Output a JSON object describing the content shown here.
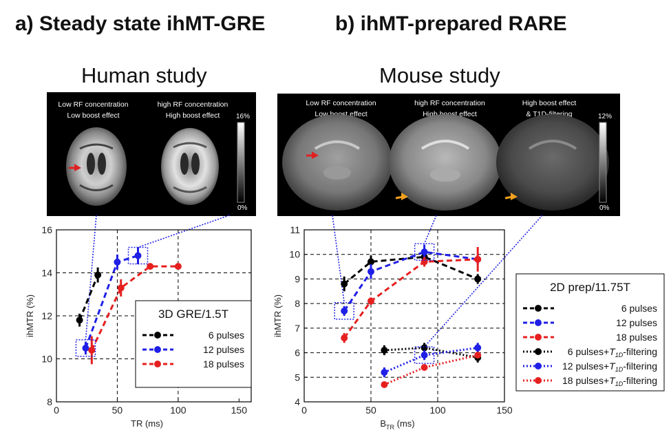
{
  "headers": {
    "a_title": "a) Steady state ihMT-GRE",
    "b_title": "b) ihMT-prepared RARE",
    "human_study": "Human study",
    "mouse_study": "Mouse study"
  },
  "human_panel": {
    "captions": [
      [
        "Low RF concentration",
        "Low boost effect"
      ],
      [
        "high RF concentration",
        "High boost effect"
      ]
    ],
    "colorbar_max": "16%",
    "colorbar_min": "0%"
  },
  "mouse_panel": {
    "captions": [
      [
        "Low RF concentration",
        "Low boost effect"
      ],
      [
        "high RF concentration",
        "High boost effect"
      ],
      [
        "High boost effect",
        "& T1D-filtering"
      ]
    ],
    "colorbar_max": "12%",
    "colorbar_min": "0%"
  },
  "colors": {
    "black": "#000000",
    "blue": "#1f1fe6",
    "red": "#e61f1f"
  },
  "chart_data": [
    {
      "type": "line",
      "id": "human",
      "xlabel": "TR (ms)",
      "ylabel": "ihMTR (%)",
      "xlim": [
        0,
        160
      ],
      "ylim": [
        8,
        16
      ],
      "xticks": [
        0,
        50,
        100,
        150
      ],
      "yticks": [
        8,
        10,
        12,
        14,
        16
      ],
      "grid_x": [
        50,
        100
      ],
      "grid_y": [
        10,
        12,
        14
      ],
      "legend_title": "3D GRE/1.5T",
      "series": [
        {
          "name": "6 pulses",
          "color": "#000000",
          "dash": "dashed",
          "points": [
            [
              19,
              11.8,
              0.3
            ],
            [
              34,
              13.9,
              0.35
            ]
          ]
        },
        {
          "name": "12 pulses",
          "color": "#1f1fe6",
          "dash": "dashed",
          "points": [
            [
              24,
              10.5,
              0.3
            ],
            [
              50,
              14.5,
              0.35
            ],
            [
              67,
              14.8,
              0.4
            ]
          ]
        },
        {
          "name": "18 pulses",
          "color": "#e61f1f",
          "dash": "dashed",
          "points": [
            [
              29,
              10.4,
              0.65
            ],
            [
              53,
              13.3,
              0.4
            ],
            [
              77,
              14.3,
              0.1
            ],
            [
              100,
              14.3,
              0.1
            ]
          ]
        }
      ]
    },
    {
      "type": "line",
      "id": "mouse",
      "xlabel": "B",
      "xlabel_sub": "TR",
      "xlabel_unit": " (ms)",
      "ylabel": "ihMTR (%)",
      "xlim": [
        0,
        150
      ],
      "ylim": [
        4,
        11
      ],
      "xticks": [
        0,
        50,
        100,
        150
      ],
      "yticks": [
        4,
        5,
        6,
        7,
        8,
        9,
        10,
        11
      ],
      "grid_x": [
        50,
        100
      ],
      "grid_y": [
        5,
        6,
        7,
        8,
        9,
        10
      ],
      "legend_title": "2D prep/11.75T",
      "series": [
        {
          "name": "6 pulses",
          "color": "#000000",
          "dash": "dashed",
          "points": [
            [
              30,
              8.8,
              0.3
            ],
            [
              50,
              9.7,
              0.25
            ],
            [
              90,
              9.9,
              0.25
            ],
            [
              130,
              9.0,
              0.2
            ]
          ]
        },
        {
          "name": "12 pulses",
          "color": "#1f1fe6",
          "dash": "dashed",
          "points": [
            [
              30,
              7.7,
              0.2
            ],
            [
              50,
              9.3,
              0.3
            ],
            [
              90,
              10.1,
              0.3
            ],
            [
              130,
              9.8,
              0.2
            ]
          ]
        },
        {
          "name": "18 pulses",
          "color": "#e61f1f",
          "dash": "dashed",
          "points": [
            [
              30,
              6.6,
              0.2
            ],
            [
              50,
              8.1,
              0.15
            ],
            [
              90,
              9.7,
              0.2
            ],
            [
              130,
              9.8,
              0.5
            ]
          ]
        },
        {
          "name": "6 pulses+",
          "suffix": "-filtering",
          "t": "T",
          "sub": "1D",
          "color": "#000000",
          "dash": "dotted",
          "points": [
            [
              60,
              6.1,
              0.2
            ],
            [
              90,
              6.2,
              0.2
            ],
            [
              130,
              5.8,
              0.2
            ]
          ]
        },
        {
          "name": "12 pulses+",
          "suffix": "-filtering",
          "t": "T",
          "sub": "1D",
          "color": "#1f1fe6",
          "dash": "dotted",
          "points": [
            [
              60,
              5.2,
              0.2
            ],
            [
              90,
              5.9,
              0.2
            ],
            [
              130,
              6.2,
              0.2
            ]
          ]
        },
        {
          "name": "18 pulses+",
          "suffix": "-filtering",
          "t": "T",
          "sub": "1D",
          "color": "#e61f1f",
          "dash": "dotted",
          "points": [
            [
              60,
              4.7,
              0.1
            ],
            [
              90,
              5.4,
              0.1
            ],
            [
              130,
              5.9,
              0.1
            ]
          ]
        }
      ]
    }
  ]
}
